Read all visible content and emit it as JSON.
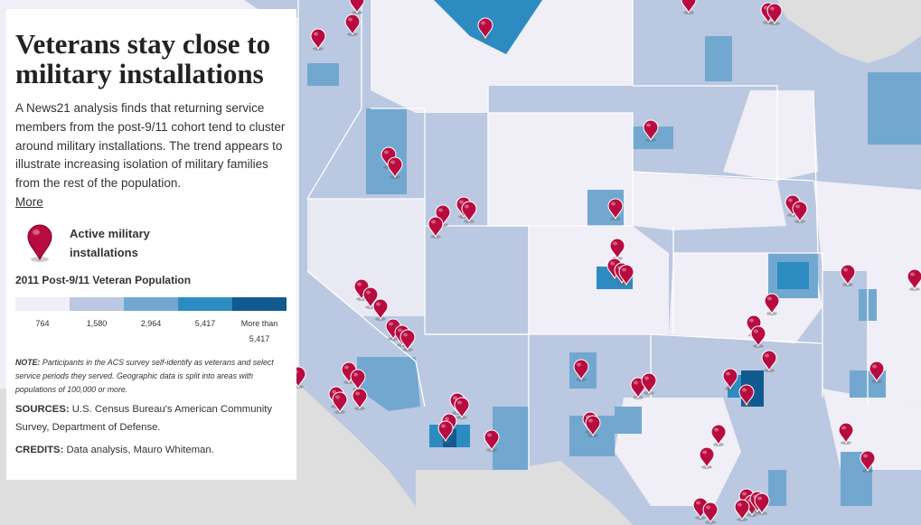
{
  "panel": {
    "title": "Veterans stay close to military installations",
    "intro": "A News21 analysis finds that returning service members from the post-9/11 cohort tend to cluster around military installations. The trend appears to illustrate increasing isolation of military families from the rest of the population.",
    "more_link": "More",
    "pin_legend": "Active military installations",
    "scale_title": "2011 Post-9/11 Veteran Population",
    "scale_labels": [
      "764",
      "1,580",
      "2,964",
      "5,417",
      "More than 5,417"
    ],
    "note_label": "NOTE:",
    "note_text": "Participants in the ACS survey self-identify as veterans and select service periods they served. Geographic data is split into areas with populations of 100,000 or more.",
    "sources_label": "SOURCES:",
    "sources_text": "U.S. Census Bureau's American Community Survey, Department of Defense.",
    "credits_label": "CREDITS:",
    "credits_text": "Data analysis, Mauro Whiteman."
  },
  "colors": {
    "class1": "#f0eef6",
    "class2": "#bac8e1",
    "class3": "#72a8d0",
    "class4": "#2c8cc2",
    "class5": "#105a90",
    "pin": "#b80c40",
    "background": "#dedede",
    "state_border": "#ffffff"
  },
  "pin_icon": "map-marker-icon"
}
